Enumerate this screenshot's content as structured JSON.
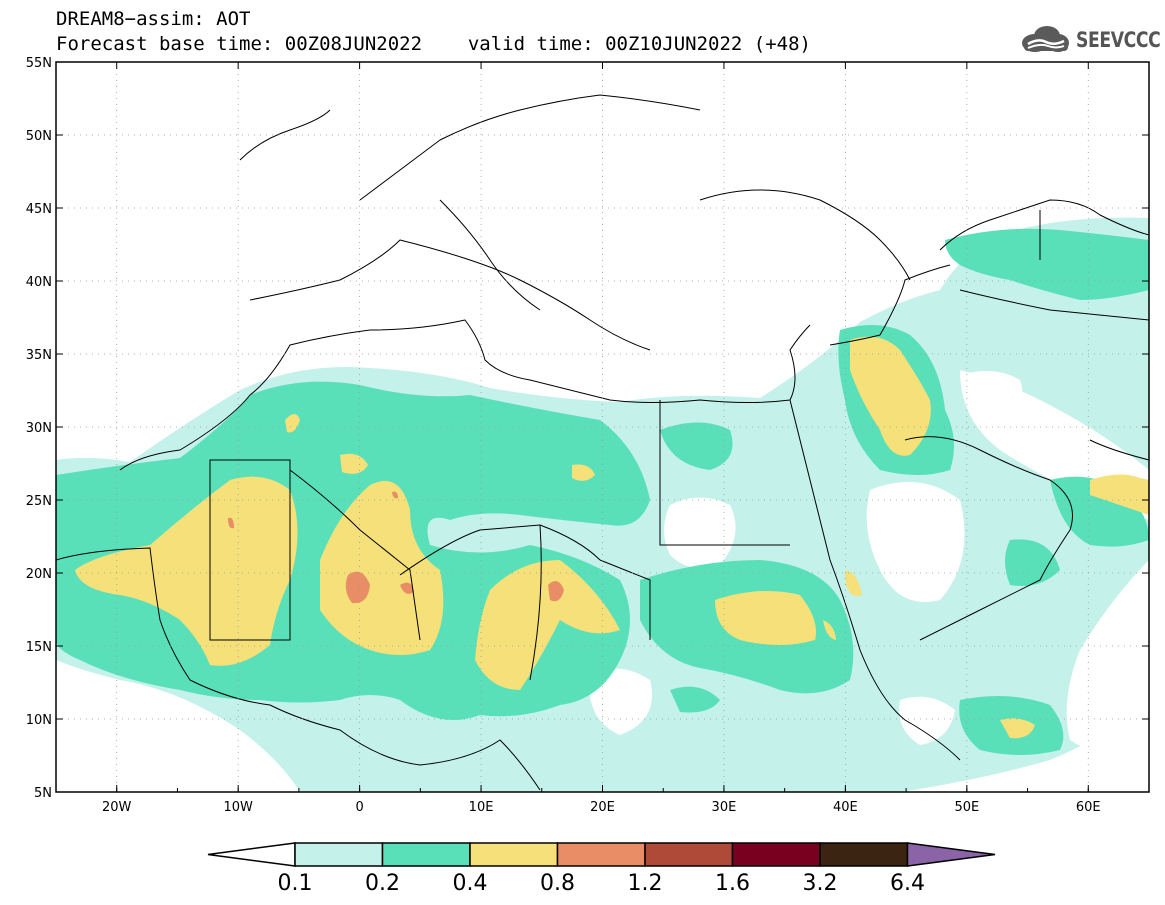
{
  "header": {
    "title_line1": "DREAM8−assim: AOT",
    "base_time_label": "Forecast base time: 00Z08JUN2022",
    "valid_time_label": "valid time: 00Z10JUN2022 (+48)"
  },
  "logo": {
    "icon": "cloud-logo-icon",
    "text": "SEEVCCC"
  },
  "map": {
    "lon_range": [
      -25,
      65
    ],
    "lat_range": [
      5,
      55
    ],
    "lat_ticks": [
      "55N",
      "50N",
      "45N",
      "40N",
      "35N",
      "30N",
      "25N",
      "20N",
      "15N",
      "10N",
      "5N"
    ],
    "lon_ticks": [
      "20W",
      "10W",
      "0",
      "10E",
      "20E",
      "30E",
      "40E",
      "50E",
      "60E"
    ],
    "grid": true
  },
  "colorbar": {
    "labels": [
      "0.1",
      "0.2",
      "0.4",
      "0.8",
      "1.2",
      "1.6",
      "3.2",
      "6.4"
    ],
    "colors": [
      "#ffffff",
      "#c4f1ea",
      "#5ae0b9",
      "#f5e07a",
      "#e98d67",
      "#b04a38",
      "#7a0020",
      "#3b2412",
      "#8a64a6"
    ]
  }
}
